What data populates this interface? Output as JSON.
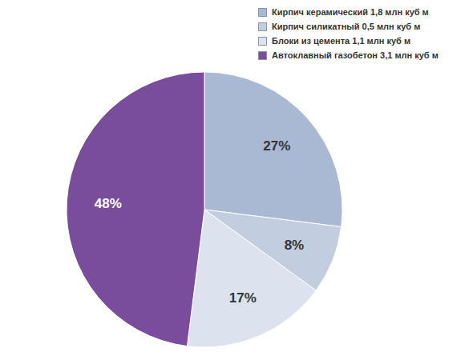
{
  "chart_data": {
    "type": "pie",
    "categories": [
      "Кирпич керамический 1,8 млн куб м",
      "Кирпич силикатный 0,5 млн куб м",
      "Блоки из цемента 1,1 млн куб м",
      "Автоклавный газобетон 3,1 млн куб м"
    ],
    "values": [
      27,
      8,
      17,
      48
    ],
    "value_labels": [
      "27%",
      "8%",
      "17%",
      "48%"
    ],
    "colors": [
      "#a9b9d4",
      "#c3cde0",
      "#dde3ee",
      "#7a4c9c"
    ],
    "data_labels": true,
    "legend": "top-right"
  }
}
